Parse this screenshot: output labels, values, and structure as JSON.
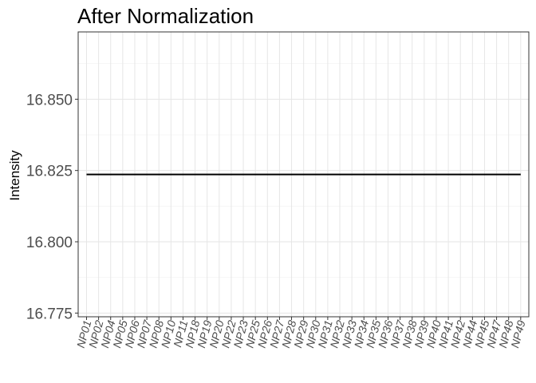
{
  "chart_data": {
    "type": "line",
    "title": "After Normalization",
    "xlabel": "",
    "ylabel": "Intensity",
    "categories": [
      "NP01",
      "NP02",
      "NP04",
      "NP05",
      "NP06",
      "NP07",
      "NP08",
      "NP10",
      "NP11",
      "NP18",
      "NP19",
      "NP20",
      "NP22",
      "NP23",
      "NP25",
      "NP26",
      "NP27",
      "NP28",
      "NP29",
      "NP30",
      "NP31",
      "NP32",
      "NP33",
      "NP34",
      "NP35",
      "NP36",
      "NP37",
      "NP38",
      "NP39",
      "NP40",
      "NP41",
      "NP42",
      "NP44",
      "NP45",
      "NP47",
      "NP48",
      "NP49"
    ],
    "series": [
      {
        "name": "",
        "values": [
          16.8236,
          16.8236,
          16.8236,
          16.8236,
          16.8236,
          16.8236,
          16.8236,
          16.8236,
          16.8236,
          16.8236,
          16.8236,
          16.8236,
          16.8236,
          16.8236,
          16.8236,
          16.8236,
          16.8236,
          16.8236,
          16.8236,
          16.8236,
          16.8236,
          16.8236,
          16.8236,
          16.8236,
          16.8236,
          16.8236,
          16.8236,
          16.8236,
          16.8236,
          16.8236,
          16.8236,
          16.8236,
          16.8236,
          16.8236,
          16.8236,
          16.8236,
          16.8236
        ],
        "color": "#000000"
      }
    ],
    "yticks": [
      16.775,
      16.8,
      16.825,
      16.85
    ],
    "ytick_labels": [
      "16.775",
      "16.800",
      "16.825",
      "16.850"
    ],
    "ylim": [
      16.7737,
      16.8736
    ],
    "grid": true,
    "legend": "none"
  }
}
